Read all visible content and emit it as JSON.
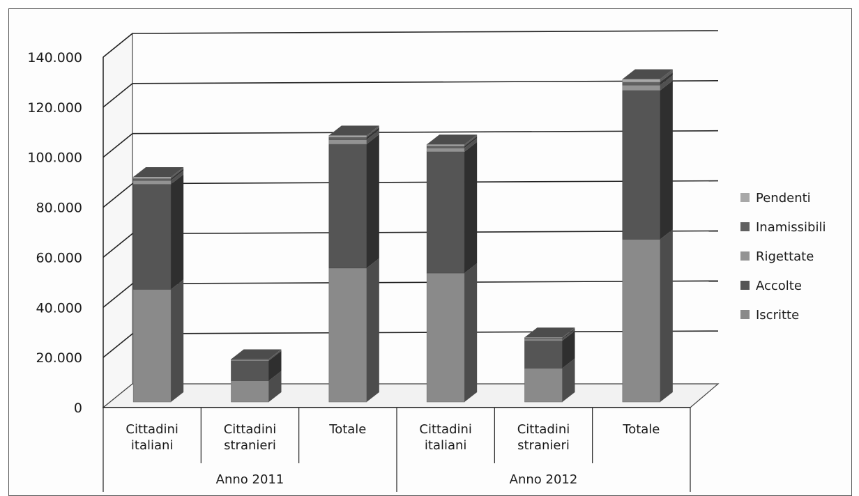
{
  "chart_data": {
    "type": "bar",
    "stacked": true,
    "three_d": true,
    "title": "",
    "xlabel": "",
    "ylabel": "",
    "ylim": [
      0,
      140000
    ],
    "y_ticks": [
      "0",
      "20.000",
      "40.000",
      "60.000",
      "80.000",
      "100.000",
      "120.000",
      "140.000"
    ],
    "grid": true,
    "legend_position": "right",
    "categories": [
      [
        "Cittadini",
        "italiani"
      ],
      [
        "Cittadini",
        "stranieri"
      ],
      [
        "Totale"
      ],
      [
        "Cittadini",
        "italiani"
      ],
      [
        "Cittadini",
        "stranieri"
      ],
      [
        "Totale"
      ]
    ],
    "groups": [
      {
        "label": "Anno 2011",
        "span": 3
      },
      {
        "label": "Anno 2012",
        "span": 3
      }
    ],
    "series": [
      {
        "name": "Iscritte",
        "color": "#8a8a8a",
        "values": [
          45000,
          8500,
          53500,
          51500,
          13500,
          65000
        ]
      },
      {
        "name": "Accolte",
        "color": "#555555",
        "values": [
          42000,
          8000,
          49500,
          48500,
          11000,
          59500
        ]
      },
      {
        "name": "Rigettate",
        "color": "#939393",
        "values": [
          1500,
          300,
          1800,
          1500,
          600,
          2100
        ]
      },
      {
        "name": "Inamissibili",
        "color": "#606060",
        "values": [
          800,
          200,
          1000,
          800,
          400,
          1200
        ]
      },
      {
        "name": "Pendenti",
        "color": "#a8a8a8",
        "values": [
          600,
          100,
          700,
          600,
          300,
          1200
        ]
      }
    ],
    "legend_order": [
      "Pendenti",
      "Inamissibili",
      "Rigettate",
      "Accolte",
      "Iscritte"
    ]
  }
}
